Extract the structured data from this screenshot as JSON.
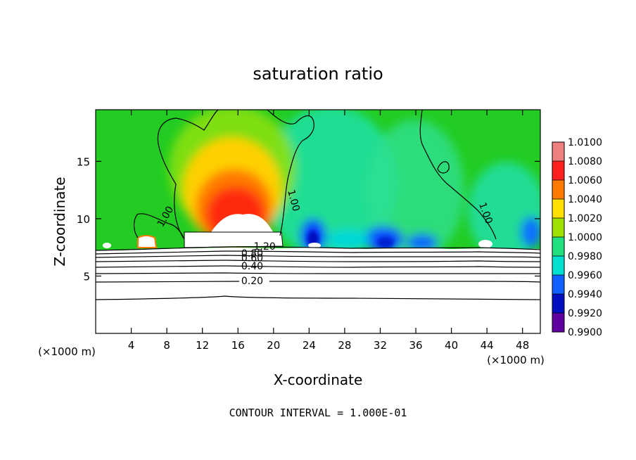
{
  "chart_data": {
    "type": "heatmap",
    "title": "saturation ratio",
    "xlabel": "X-coordinate",
    "ylabel": "Z-coordinate",
    "x_unit_label": "(×1000 m)",
    "y_unit_label": "(×1000 m)",
    "xlim": [
      0,
      50
    ],
    "ylim": [
      0,
      19.5
    ],
    "x_ticks": [
      4,
      8,
      12,
      16,
      20,
      24,
      28,
      32,
      36,
      40,
      44,
      48
    ],
    "y_ticks": [
      5,
      10,
      15
    ],
    "footnote": "CONTOUR INTERVAL = 1.000E-01",
    "colorbar": {
      "levels": [
        "1.0100",
        "1.0080",
        "1.0060",
        "1.0040",
        "1.0020",
        "1.0000",
        "0.9980",
        "0.9960",
        "0.9940",
        "0.9920",
        "0.9900"
      ],
      "colors": [
        "#f08080",
        "#ff2020",
        "#ff7a00",
        "#ffe000",
        "#a0e000",
        "#20cc20",
        "#20e080",
        "#00e0d0",
        "#1060ff",
        "#0010c0",
        "#6000a0"
      ]
    },
    "contour_labels": [
      {
        "text": "1.00",
        "x": 7.8,
        "z": 10.2,
        "rot": -60
      },
      {
        "text": "1.00",
        "x": 22.3,
        "z": 11.6,
        "rot": 75
      },
      {
        "text": "1.00",
        "x": 43.9,
        "z": 10.5,
        "rot": 70
      },
      {
        "text": "1.20",
        "x": 19.0,
        "z": 7.6,
        "rot": 0
      },
      {
        "text": "0.80",
        "x": 17.6,
        "z": 7.0,
        "rot": 0
      },
      {
        "text": "0.60",
        "x": 17.6,
        "z": 6.6,
        "rot": 0
      },
      {
        "text": "0.40",
        "x": 17.6,
        "z": 5.9,
        "rot": 0
      },
      {
        "text": "0.20",
        "x": 17.6,
        "z": 4.6,
        "rot": 0
      }
    ]
  }
}
